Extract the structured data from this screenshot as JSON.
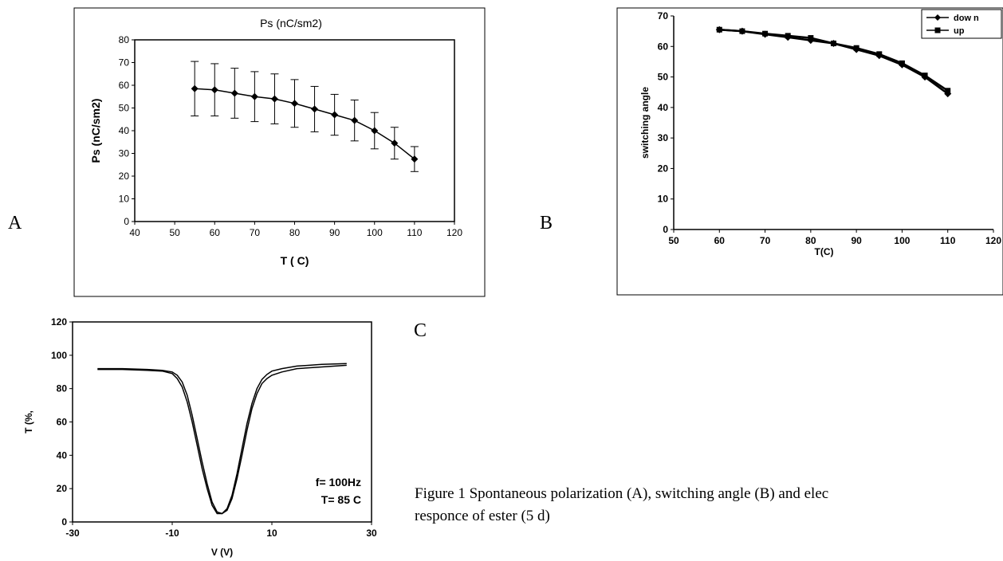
{
  "panels": {
    "a": "A",
    "b": "B",
    "c": "C"
  },
  "caption": {
    "line1": "Figure 1 Spontaneous polarization (A), switching angle (B) and elec",
    "line2": "responce of ester (5 d)"
  },
  "chart_data": [
    {
      "id": "A",
      "type": "line",
      "title": "Ps (nC/sm2)",
      "xlabel": "T ( C)",
      "ylabel": "Ps (nC/sm2)",
      "xlim": [
        40,
        120
      ],
      "ylim": [
        0,
        80
      ],
      "xticks": [
        40,
        50,
        60,
        70,
        80,
        90,
        100,
        110,
        120
      ],
      "yticks": [
        0,
        10,
        20,
        30,
        40,
        50,
        60,
        70,
        80
      ],
      "grid": false,
      "series": [
        {
          "x": [
            55,
            60,
            65,
            70,
            75,
            80,
            85,
            90,
            95,
            100,
            105,
            110
          ],
          "y": [
            58.5,
            58,
            56.5,
            55,
            54,
            52,
            49.5,
            47,
            44.5,
            40,
            34.5,
            27.5
          ],
          "error": [
            12,
            11.5,
            11,
            11,
            11,
            10.5,
            10,
            9,
            9,
            8,
            7,
            5.5
          ]
        }
      ]
    },
    {
      "id": "B",
      "type": "line",
      "xlabel": "T(C)",
      "ylabel": "switching angle",
      "xlim": [
        50,
        120
      ],
      "ylim": [
        0,
        70
      ],
      "xticks": [
        50,
        60,
        70,
        80,
        90,
        100,
        110,
        120
      ],
      "yticks": [
        0,
        10,
        20,
        30,
        40,
        50,
        60,
        70
      ],
      "grid": false,
      "legend": "top-right",
      "series": [
        {
          "name": "dow n",
          "marker": "diamond",
          "x": [
            60,
            65,
            70,
            75,
            80,
            85,
            90,
            95,
            100,
            105,
            110
          ],
          "y": [
            65.5,
            65,
            64,
            63,
            62,
            61,
            59,
            57,
            54,
            50,
            44.5
          ]
        },
        {
          "name": "up",
          "marker": "square",
          "x": [
            60,
            65,
            70,
            75,
            80,
            85,
            90,
            95,
            100,
            105,
            110
          ],
          "y": [
            65.5,
            65,
            64.2,
            63.5,
            62.8,
            61,
            59.5,
            57.5,
            54.5,
            50.5,
            45.5
          ]
        }
      ]
    },
    {
      "id": "C",
      "type": "line",
      "xlabel": "V (V)",
      "ylabel": "T (%,",
      "xlim": [
        -30,
        30
      ],
      "ylim": [
        0,
        120
      ],
      "xticks": [
        -30,
        -10,
        10,
        30
      ],
      "yticks": [
        0,
        20,
        40,
        60,
        80,
        100,
        120
      ],
      "grid": false,
      "annotations": [
        "f= 100Hz",
        "T= 85 C"
      ],
      "series": [
        {
          "x": [
            -25,
            -20,
            -15,
            -12,
            -10,
            -9,
            -8,
            -7,
            -6,
            -5,
            -4,
            -3,
            -2,
            -1,
            0,
            1,
            2,
            3,
            4,
            5,
            6,
            7,
            8,
            9,
            10,
            12,
            15,
            20,
            25
          ],
          "y": [
            92,
            92,
            91.5,
            91,
            90,
            88,
            84,
            76,
            64,
            50,
            36,
            23,
            12,
            6,
            5,
            7,
            14,
            26,
            40,
            55,
            68,
            77,
            83,
            86,
            88,
            90,
            92,
            93,
            94
          ]
        },
        {
          "x": [
            -25,
            -20,
            -15,
            -12,
            -10,
            -9,
            -8,
            -7,
            -6,
            -5,
            -4,
            -3,
            -2,
            -1,
            0,
            1,
            2,
            3,
            4,
            5,
            6,
            7,
            8,
            9,
            10,
            12,
            15,
            20,
            25
          ],
          "y": [
            91.5,
            91.5,
            91,
            90.5,
            89,
            86,
            81,
            72,
            60,
            46,
            32,
            20,
            10,
            5,
            5,
            8,
            16,
            29,
            44,
            59,
            71,
            80,
            85.5,
            88.5,
            90.5,
            92,
            93.5,
            94.5,
            95
          ]
        }
      ]
    }
  ]
}
